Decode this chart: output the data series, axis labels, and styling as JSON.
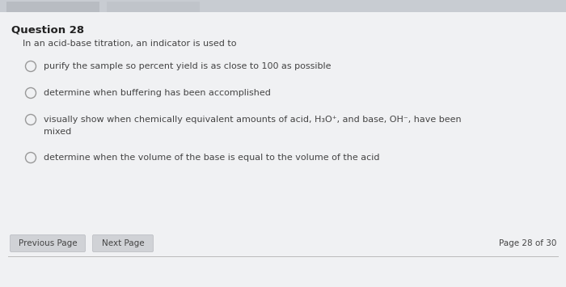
{
  "title": "Question 28",
  "question": "In an acid-base titration, an indicator is used to",
  "options": [
    "purify the sample so percent yield is as close to 100 as possible",
    "determine when buffering has been accomplished",
    "visually show when chemically equivalent amounts of acid, H₃O⁺, and base, OH⁻, have been\nmixed",
    "determine when the volume of the base is equal to the volume of the acid"
  ],
  "footer_left1": "Previous Page",
  "footer_left2": "Next Page",
  "footer_right": "Page 28 of 30",
  "bg_color": "#e8eaee",
  "top_bar_color": "#c8ccd2",
  "tab1_color": "#b8bcc2",
  "tab2_color": "#c0c4ca",
  "content_bg": "#f0f1f3",
  "title_fontsize": 9.5,
  "question_fontsize": 8,
  "option_fontsize": 8,
  "footer_fontsize": 7.5,
  "button_color": "#d0d2d6",
  "button_text_color": "#444444",
  "title_color": "#222222",
  "text_color": "#444444",
  "circle_edge_color": "#999999",
  "separator_color": "#bbbbbb"
}
